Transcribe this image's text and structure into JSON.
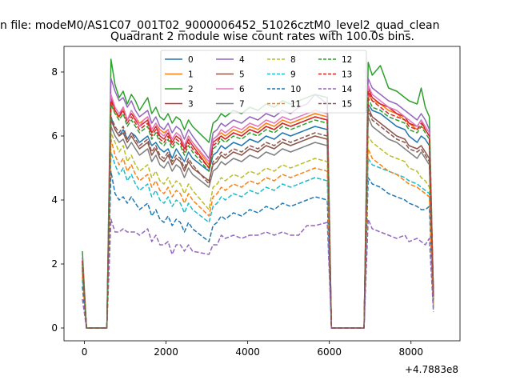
{
  "chart_data": {
    "type": "line",
    "suptitle": "n file: modeM0/AS1C07_001T02_9000006452_51026cztM0_level2_quad_clean",
    "title": "Quadrant 2 module wise count rates with 100.0s bins.",
    "xlabel": "",
    "ylabel": "",
    "offset_label": "+4.7883e8",
    "xlim": [
      -500,
      9200
    ],
    "ylim": [
      -0.4,
      8.8
    ],
    "x_ticks": [
      0,
      2000,
      4000,
      6000,
      8000
    ],
    "y_ticks": [
      0,
      2,
      4,
      6,
      8
    ],
    "x_tick_labels": [
      "0",
      "2000",
      "4000",
      "6000",
      "8000"
    ],
    "y_tick_labels": [
      "0",
      "2",
      "4",
      "6",
      "8"
    ],
    "grid": false,
    "legend_position": "top-center",
    "legend_columns": 4,
    "series": [
      {
        "name": "0",
        "color": "#1f77b4",
        "style": "solid",
        "values": [
          1.8,
          0.0,
          0.0,
          0.0,
          6.6,
          6.2,
          6.0,
          6.2,
          5.9,
          6.1,
          6.0,
          5.8,
          5.9,
          6.0,
          5.7,
          5.8,
          5.6,
          5.5,
          5.6,
          5.3,
          5.6,
          5.4,
          5.2,
          5.5,
          5.3,
          4.9,
          5.4,
          5.5,
          5.7,
          5.6,
          5.8,
          5.7,
          5.9,
          5.8,
          6.0,
          5.9,
          6.1,
          6.0,
          6.1,
          6.2,
          6.3,
          6.2,
          0.0,
          0.0,
          0.0,
          0.0,
          7.0,
          6.8,
          6.7,
          6.5,
          6.3,
          6.2,
          6.0,
          5.8,
          6.0,
          5.9,
          5.7,
          0.9
        ]
      },
      {
        "name": "1",
        "color": "#ff7f0e",
        "style": "solid",
        "values": [
          2.0,
          0.0,
          0.0,
          0.0,
          7.0,
          6.7,
          6.6,
          6.8,
          6.5,
          6.7,
          6.6,
          6.4,
          6.5,
          6.6,
          6.2,
          6.4,
          6.2,
          6.1,
          6.2,
          5.9,
          6.1,
          6.0,
          5.7,
          6.0,
          5.8,
          5.1,
          5.9,
          6.0,
          6.1,
          6.0,
          6.2,
          6.1,
          6.3,
          6.2,
          6.4,
          6.3,
          6.5,
          6.4,
          6.5,
          6.6,
          6.7,
          6.6,
          0.0,
          0.0,
          0.0,
          0.0,
          7.3,
          7.1,
          7.0,
          6.8,
          6.7,
          6.5,
          6.4,
          6.2,
          6.3,
          6.2,
          6.0,
          1.0
        ]
      },
      {
        "name": "2",
        "color": "#2ca02c",
        "style": "solid",
        "values": [
          2.4,
          0.0,
          0.0,
          0.0,
          8.4,
          7.6,
          7.2,
          7.4,
          7.0,
          7.3,
          7.1,
          6.8,
          7.0,
          7.2,
          6.7,
          6.9,
          6.6,
          6.5,
          6.7,
          6.4,
          6.6,
          6.5,
          6.2,
          6.5,
          6.3,
          5.8,
          6.4,
          6.5,
          6.7,
          6.6,
          6.8,
          6.7,
          6.9,
          6.8,
          7.0,
          6.9,
          7.1,
          7.0,
          7.1,
          7.2,
          7.3,
          7.2,
          0.0,
          0.0,
          0.0,
          0.0,
          8.3,
          7.9,
          8.2,
          7.5,
          7.4,
          7.2,
          7.1,
          7.0,
          7.5,
          6.9,
          6.6,
          1.1
        ]
      },
      {
        "name": "3",
        "color": "#d62728",
        "style": "solid",
        "values": [
          2.1,
          0.0,
          0.0,
          0.0,
          7.2,
          6.8,
          6.6,
          6.9,
          6.5,
          6.7,
          6.5,
          6.3,
          6.4,
          6.5,
          6.1,
          6.3,
          6.0,
          5.9,
          6.1,
          5.8,
          6.0,
          5.9,
          5.6,
          5.9,
          5.7,
          5.0,
          5.8,
          5.9,
          6.0,
          5.9,
          6.1,
          6.0,
          6.2,
          6.1,
          6.3,
          6.2,
          6.4,
          6.3,
          6.4,
          6.5,
          6.6,
          6.5,
          0.0,
          0.0,
          0.0,
          0.0,
          7.5,
          7.2,
          7.0,
          6.9,
          6.7,
          6.6,
          6.4,
          6.3,
          6.5,
          6.2,
          6.0,
          1.0
        ]
      },
      {
        "name": "4",
        "color": "#9467bd",
        "style": "solid",
        "values": [
          2.2,
          0.0,
          0.0,
          0.0,
          7.8,
          7.4,
          7.1,
          7.2,
          6.9,
          7.1,
          6.8,
          6.6,
          6.7,
          6.8,
          6.4,
          6.6,
          6.3,
          6.2,
          6.4,
          6.1,
          6.3,
          6.2,
          5.9,
          6.2,
          6.0,
          5.3,
          6.1,
          6.2,
          6.4,
          6.3,
          6.5,
          6.4,
          6.6,
          6.5,
          6.7,
          6.6,
          6.8,
          6.7,
          6.9,
          7.0,
          7.3,
          7.0,
          0.0,
          0.0,
          0.0,
          0.0,
          7.8,
          7.5,
          7.3,
          7.1,
          7.0,
          6.8,
          6.7,
          6.5,
          6.7,
          6.5,
          6.2,
          1.0
        ]
      },
      {
        "name": "5",
        "color": "#8c564b",
        "style": "solid",
        "values": [
          1.9,
          0.0,
          0.0,
          0.0,
          6.5,
          6.2,
          6.0,
          6.1,
          5.8,
          6.0,
          5.8,
          5.6,
          5.7,
          5.8,
          5.4,
          5.6,
          5.3,
          5.2,
          5.4,
          5.1,
          5.3,
          5.2,
          4.9,
          5.2,
          5.0,
          4.6,
          5.1,
          5.2,
          5.4,
          5.3,
          5.5,
          5.4,
          5.6,
          5.5,
          5.7,
          5.6,
          5.8,
          5.7,
          5.8,
          5.9,
          6.0,
          5.9,
          0.0,
          0.0,
          0.0,
          0.0,
          6.9,
          6.6,
          6.4,
          6.2,
          6.0,
          5.9,
          5.7,
          5.6,
          5.7,
          5.5,
          5.3,
          0.9
        ]
      },
      {
        "name": "6",
        "color": "#e377c2",
        "style": "solid",
        "values": [
          2.1,
          0.0,
          0.0,
          0.0,
          7.3,
          6.9,
          6.7,
          6.9,
          6.5,
          6.8,
          6.6,
          6.3,
          6.5,
          6.6,
          6.2,
          6.4,
          6.1,
          6.0,
          6.2,
          5.9,
          6.1,
          6.0,
          5.7,
          6.0,
          5.8,
          5.2,
          5.9,
          6.0,
          6.2,
          6.1,
          6.3,
          6.2,
          6.4,
          6.3,
          6.5,
          6.4,
          6.6,
          6.5,
          6.6,
          6.7,
          6.8,
          6.7,
          0.0,
          0.0,
          0.0,
          0.0,
          7.6,
          7.3,
          7.1,
          6.9,
          6.8,
          6.6,
          6.5,
          6.3,
          6.5,
          6.3,
          6.1,
          1.0
        ]
      },
      {
        "name": "7",
        "color": "#7f7f7f",
        "style": "solid",
        "values": [
          1.8,
          0.0,
          0.0,
          0.0,
          6.3,
          6.0,
          5.8,
          5.9,
          5.6,
          5.8,
          5.6,
          5.4,
          5.5,
          5.6,
          5.2,
          5.4,
          5.1,
          5.0,
          5.2,
          4.9,
          5.1,
          5.0,
          4.7,
          5.0,
          4.8,
          4.4,
          4.9,
          5.0,
          5.2,
          5.1,
          5.3,
          5.2,
          5.4,
          5.3,
          5.5,
          5.4,
          5.6,
          5.5,
          5.6,
          5.7,
          5.8,
          5.7,
          0.0,
          0.0,
          0.0,
          0.0,
          6.6,
          6.3,
          6.1,
          5.9,
          5.8,
          5.6,
          5.5,
          5.3,
          5.5,
          5.3,
          5.1,
          0.8
        ]
      },
      {
        "name": "8",
        "color": "#bcbd22",
        "style": "dashed",
        "values": [
          1.7,
          0.0,
          0.0,
          0.0,
          6.1,
          5.8,
          5.5,
          5.7,
          5.2,
          5.4,
          5.1,
          4.9,
          5.0,
          5.1,
          4.7,
          4.9,
          4.6,
          4.5,
          4.7,
          4.4,
          4.6,
          4.5,
          4.2,
          4.5,
          4.3,
          3.7,
          4.4,
          4.5,
          4.7,
          4.6,
          4.8,
          4.7,
          4.9,
          4.8,
          5.0,
          4.9,
          5.1,
          5.0,
          5.1,
          5.2,
          5.3,
          5.2,
          0.0,
          0.0,
          0.0,
          0.0,
          6.0,
          5.8,
          5.6,
          5.4,
          5.3,
          5.2,
          5.0,
          4.9,
          4.7,
          4.6,
          4.4,
          0.8
        ]
      },
      {
        "name": "9",
        "color": "#17becf",
        "style": "dashed",
        "values": [
          1.5,
          0.0,
          0.0,
          0.0,
          5.5,
          5.1,
          4.8,
          5.0,
          4.6,
          4.8,
          4.5,
          4.3,
          4.4,
          4.5,
          4.1,
          4.3,
          4.0,
          3.9,
          4.1,
          3.8,
          4.0,
          3.9,
          3.6,
          3.9,
          3.7,
          3.3,
          3.8,
          3.9,
          4.1,
          4.0,
          4.2,
          4.1,
          4.3,
          4.2,
          4.4,
          4.3,
          4.5,
          4.4,
          4.5,
          4.6,
          4.7,
          4.6,
          0.0,
          0.0,
          0.0,
          0.0,
          5.3,
          5.1,
          5.0,
          4.9,
          4.8,
          4.7,
          4.6,
          4.5,
          4.4,
          4.3,
          4.2,
          0.7
        ]
      },
      {
        "name": "10",
        "color": "#1f77b4",
        "style": "dashed",
        "values": [
          1.3,
          0.0,
          0.0,
          0.0,
          4.9,
          4.2,
          4.0,
          4.1,
          3.9,
          4.1,
          3.9,
          3.7,
          3.8,
          3.9,
          3.5,
          3.7,
          3.4,
          3.3,
          3.5,
          3.2,
          3.4,
          3.3,
          3.0,
          3.3,
          3.1,
          2.7,
          3.2,
          3.3,
          3.5,
          3.4,
          3.6,
          3.5,
          3.7,
          3.6,
          3.8,
          3.7,
          3.9,
          3.8,
          3.9,
          4.0,
          4.1,
          4.0,
          0.0,
          0.0,
          0.0,
          0.0,
          4.7,
          4.5,
          4.4,
          4.2,
          4.1,
          4.0,
          3.9,
          3.8,
          3.7,
          3.7,
          3.8,
          0.6
        ]
      },
      {
        "name": "11",
        "color": "#ff7f0e",
        "style": "dashed",
        "values": [
          1.6,
          0.0,
          0.0,
          0.0,
          5.9,
          5.4,
          5.1,
          5.3,
          4.9,
          5.1,
          4.8,
          4.6,
          4.7,
          4.8,
          4.4,
          4.6,
          4.3,
          4.2,
          4.4,
          4.1,
          4.3,
          4.2,
          3.9,
          4.2,
          4.0,
          3.5,
          4.1,
          4.2,
          4.4,
          4.3,
          4.5,
          4.4,
          4.6,
          4.5,
          4.7,
          4.6,
          4.8,
          4.7,
          4.8,
          4.9,
          5.0,
          4.9,
          0.0,
          0.0,
          0.0,
          0.0,
          5.6,
          5.3,
          5.1,
          4.9,
          4.8,
          4.6,
          4.5,
          4.4,
          4.3,
          4.2,
          4.1,
          0.7
        ]
      },
      {
        "name": "12",
        "color": "#2ca02c",
        "style": "dashed",
        "values": [
          2.0,
          0.0,
          0.0,
          0.0,
          7.0,
          6.7,
          6.5,
          6.7,
          6.3,
          6.5,
          6.3,
          6.1,
          6.2,
          6.3,
          5.9,
          6.1,
          5.8,
          5.7,
          5.9,
          5.6,
          5.8,
          5.7,
          5.4,
          5.7,
          5.5,
          4.9,
          5.6,
          5.7,
          5.9,
          5.8,
          6.0,
          5.9,
          6.1,
          6.0,
          6.2,
          6.1,
          6.3,
          6.2,
          6.3,
          6.4,
          6.5,
          6.4,
          0.0,
          0.0,
          0.0,
          0.0,
          7.2,
          6.9,
          6.8,
          6.6,
          6.5,
          6.4,
          6.2,
          6.1,
          6.3,
          6.1,
          5.9,
          1.0
        ]
      },
      {
        "name": "13",
        "color": "#d62728",
        "style": "dashed",
        "values": [
          2.1,
          0.0,
          0.0,
          0.0,
          7.1,
          6.8,
          6.6,
          6.8,
          6.4,
          6.6,
          6.4,
          6.2,
          6.3,
          6.4,
          6.0,
          6.2,
          5.9,
          5.8,
          6.0,
          5.7,
          5.9,
          5.8,
          5.5,
          5.8,
          5.6,
          5.0,
          5.7,
          5.8,
          6.0,
          5.9,
          6.1,
          6.0,
          6.2,
          6.1,
          6.3,
          6.2,
          6.4,
          6.3,
          6.4,
          6.5,
          6.6,
          6.5,
          0.0,
          0.0,
          0.0,
          0.0,
          7.4,
          7.1,
          6.9,
          6.7,
          6.6,
          6.5,
          6.3,
          6.2,
          6.4,
          6.2,
          6.0,
          1.0
        ]
      },
      {
        "name": "14",
        "color": "#9467bd",
        "style": "dashed",
        "values": [
          0.9,
          0.0,
          0.0,
          0.0,
          3.4,
          3.0,
          3.0,
          3.1,
          3.0,
          3.0,
          3.0,
          2.9,
          3.0,
          3.1,
          2.7,
          2.9,
          2.6,
          2.6,
          2.7,
          2.3,
          2.6,
          2.6,
          2.4,
          2.6,
          2.4,
          2.3,
          2.6,
          2.6,
          2.9,
          2.8,
          2.9,
          2.8,
          2.9,
          2.9,
          3.0,
          2.9,
          3.0,
          2.9,
          2.9,
          3.2,
          3.2,
          3.3,
          0.0,
          0.0,
          0.0,
          0.0,
          3.4,
          3.1,
          3.0,
          2.9,
          2.8,
          2.9,
          2.7,
          2.8,
          2.7,
          2.6,
          2.8,
          0.5
        ]
      },
      {
        "name": "15",
        "color": "#8c564b",
        "style": "dashed",
        "values": [
          1.9,
          0.0,
          0.0,
          0.0,
          6.6,
          6.3,
          6.1,
          6.3,
          5.9,
          6.1,
          5.9,
          5.7,
          5.8,
          5.9,
          5.5,
          5.7,
          5.4,
          5.3,
          5.5,
          5.2,
          5.4,
          5.3,
          5.0,
          5.3,
          5.1,
          4.5,
          5.2,
          5.3,
          5.5,
          5.4,
          5.6,
          5.5,
          5.7,
          5.6,
          5.8,
          5.7,
          5.9,
          5.8,
          5.9,
          6.0,
          6.1,
          6.0,
          0.0,
          0.0,
          0.0,
          0.0,
          6.8,
          6.5,
          6.3,
          6.1,
          5.9,
          5.8,
          5.6,
          5.5,
          5.6,
          5.4,
          5.2,
          0.9
        ]
      }
    ],
    "x": [
      -50,
      50,
      150,
      550,
      650,
      750,
      850,
      950,
      1050,
      1150,
      1250,
      1350,
      1450,
      1550,
      1650,
      1750,
      1850,
      1950,
      2050,
      2150,
      2250,
      2350,
      2450,
      2550,
      2650,
      3050,
      3150,
      3250,
      3350,
      3450,
      3650,
      3850,
      4050,
      4250,
      4450,
      4650,
      4850,
      5050,
      5250,
      5450,
      5650,
      5950,
      6050,
      6150,
      6550,
      6850,
      6950,
      7050,
      7250,
      7450,
      7650,
      7850,
      7950,
      8150,
      8250,
      8350,
      8450,
      8550
    ]
  }
}
